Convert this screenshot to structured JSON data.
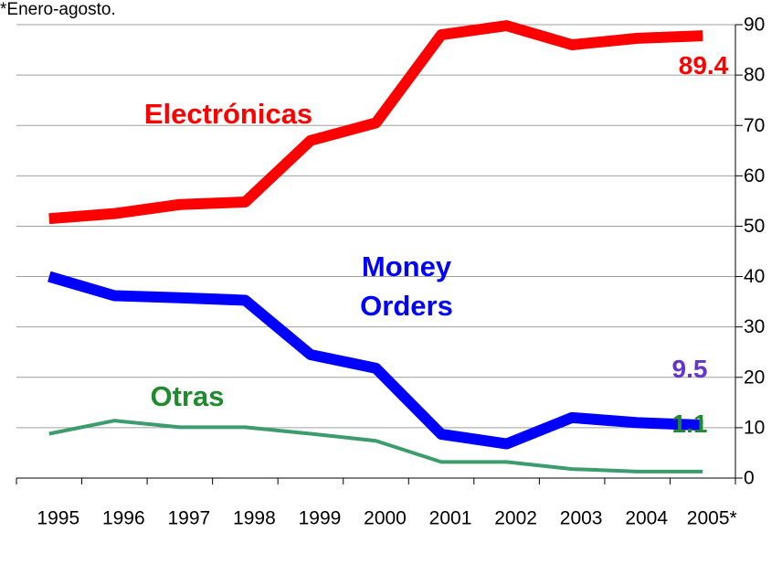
{
  "chart_data": {
    "type": "line",
    "categories": [
      "1995",
      "1996",
      "1997",
      "1998",
      "1999",
      "2000",
      "2001",
      "2002",
      "2003",
      "2004",
      "2005*"
    ],
    "series": [
      {
        "name": "Electrónicas",
        "color": "#ff0000",
        "label_color": "#ff0000",
        "width": 12,
        "values": [
          51.5,
          52.5,
          54.3,
          54.8,
          67,
          70.5,
          88,
          89.8,
          86,
          87.3,
          87.8
        ]
      },
      {
        "name": "Money Orders",
        "color": "#0000ff",
        "label_color": "#0000ff",
        "width": 12,
        "values": [
          40,
          36.2,
          35.8,
          35.3,
          24.5,
          21.8,
          8.7,
          6.8,
          12,
          11,
          10.5
        ]
      },
      {
        "name": "Otras",
        "color": "#3c9c6c",
        "label_color": "#1f8a2e",
        "width": 4,
        "values": [
          8.8,
          11.4,
          10.1,
          10.1,
          8.8,
          7.4,
          3.2,
          3.2,
          1.8,
          1.3,
          1.3
        ]
      }
    ],
    "annotations": [
      {
        "text": "89.4",
        "color": "#ff0000"
      },
      {
        "text": "9.5",
        "color": "#6633cc"
      },
      {
        "text": "1.1",
        "color": "#1f8a2e"
      }
    ],
    "ylim": [
      0,
      90
    ],
    "yticks": [
      0,
      10,
      20,
      30,
      40,
      50,
      60,
      70,
      80,
      90
    ],
    "grid": true,
    "y_axis_side": "right",
    "footnote": "*Enero-agosto."
  }
}
